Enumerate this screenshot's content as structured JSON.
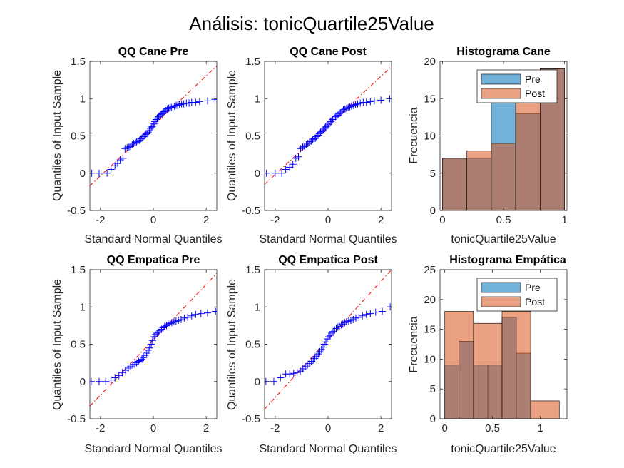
{
  "figure": {
    "title": "Análisis: tonicQuartile25Value",
    "colors": {
      "pre": "#0072BD",
      "post": "#D95319",
      "qq_marker": "#0000FF",
      "ref_line": "#FF0000"
    }
  },
  "chart_data": [
    {
      "id": "qq-cane-pre",
      "type": "scatter",
      "title": "QQ Cane Pre",
      "xlabel": "Standard Normal Quantiles",
      "ylabel": "Quantiles of Input Sample",
      "xlim": [
        -2.4,
        2.4
      ],
      "ylim": [
        -0.5,
        1.5
      ],
      "xticks": [
        -2,
        0,
        2
      ],
      "yticks": [
        -0.5,
        0,
        0.5,
        1,
        1.5
      ],
      "xtick_labels": [
        "-2",
        "0",
        "2"
      ],
      "ytick_labels": [
        "-0.5",
        "0",
        "0.5",
        "1",
        "1.5"
      ],
      "reference_line": {
        "x": [
          -2.4,
          2.4
        ],
        "y": [
          -0.17,
          1.44
        ]
      },
      "points": [
        [
          -2.33,
          0.0
        ],
        [
          -2.05,
          0.0
        ],
        [
          -1.75,
          0.0
        ],
        [
          -1.6,
          0.05
        ],
        [
          -1.45,
          0.1
        ],
        [
          -1.35,
          0.13
        ],
        [
          -1.25,
          0.18
        ],
        [
          -1.15,
          0.2
        ],
        [
          -1.07,
          0.33
        ],
        [
          -0.99,
          0.34
        ],
        [
          -0.92,
          0.35
        ],
        [
          -0.86,
          0.36
        ],
        [
          -0.8,
          0.38
        ],
        [
          -0.74,
          0.4
        ],
        [
          -0.68,
          0.41
        ],
        [
          -0.63,
          0.42
        ],
        [
          -0.58,
          0.43
        ],
        [
          -0.53,
          0.44
        ],
        [
          -0.48,
          0.46
        ],
        [
          -0.43,
          0.47
        ],
        [
          -0.38,
          0.49
        ],
        [
          -0.33,
          0.5
        ],
        [
          -0.29,
          0.52
        ],
        [
          -0.24,
          0.53
        ],
        [
          -0.2,
          0.55
        ],
        [
          -0.15,
          0.57
        ],
        [
          -0.11,
          0.6
        ],
        [
          -0.06,
          0.62
        ],
        [
          -0.02,
          0.63
        ],
        [
          0.02,
          0.66
        ],
        [
          0.06,
          0.69
        ],
        [
          0.11,
          0.72
        ],
        [
          0.15,
          0.74
        ],
        [
          0.2,
          0.76
        ],
        [
          0.24,
          0.77
        ],
        [
          0.29,
          0.79
        ],
        [
          0.33,
          0.8
        ],
        [
          0.38,
          0.82
        ],
        [
          0.43,
          0.83
        ],
        [
          0.48,
          0.84
        ],
        [
          0.53,
          0.86
        ],
        [
          0.58,
          0.87
        ],
        [
          0.63,
          0.88
        ],
        [
          0.68,
          0.88
        ],
        [
          0.74,
          0.89
        ],
        [
          0.8,
          0.9
        ],
        [
          0.86,
          0.91
        ],
        [
          0.92,
          0.91
        ],
        [
          0.99,
          0.92
        ],
        [
          1.07,
          0.93
        ],
        [
          1.15,
          0.93
        ],
        [
          1.25,
          0.94
        ],
        [
          1.35,
          0.94
        ],
        [
          1.45,
          0.95
        ],
        [
          1.6,
          0.95
        ],
        [
          1.75,
          0.96
        ],
        [
          2.05,
          0.97
        ],
        [
          2.33,
          0.99
        ]
      ]
    },
    {
      "id": "qq-cane-post",
      "type": "scatter",
      "title": "QQ Cane Post",
      "xlabel": "Standard Normal Quantiles",
      "ylabel": "Quantiles of Input Sample",
      "xlim": [
        -2.4,
        2.4
      ],
      "ylim": [
        -0.5,
        1.5
      ],
      "xticks": [
        -2,
        0,
        2
      ],
      "yticks": [
        -0.5,
        0,
        0.5,
        1,
        1.5
      ],
      "xtick_labels": [
        "-2",
        "0",
        "2"
      ],
      "ytick_labels": [
        "-0.5",
        "0",
        "0.5",
        "1",
        "1.5"
      ],
      "reference_line": {
        "x": [
          -2.4,
          2.4
        ],
        "y": [
          -0.15,
          1.43
        ]
      },
      "points": [
        [
          -2.33,
          0.0
        ],
        [
          -2.0,
          0.0
        ],
        [
          -1.75,
          0.0
        ],
        [
          -1.6,
          0.05
        ],
        [
          -1.45,
          0.08
        ],
        [
          -1.33,
          0.12
        ],
        [
          -1.22,
          0.2
        ],
        [
          -1.12,
          0.22
        ],
        [
          -1.04,
          0.33
        ],
        [
          -0.96,
          0.35
        ],
        [
          -0.89,
          0.36
        ],
        [
          -0.82,
          0.38
        ],
        [
          -0.76,
          0.4
        ],
        [
          -0.7,
          0.42
        ],
        [
          -0.64,
          0.43
        ],
        [
          -0.58,
          0.45
        ],
        [
          -0.53,
          0.46
        ],
        [
          -0.48,
          0.47
        ],
        [
          -0.43,
          0.49
        ],
        [
          -0.38,
          0.51
        ],
        [
          -0.33,
          0.53
        ],
        [
          -0.28,
          0.55
        ],
        [
          -0.23,
          0.56
        ],
        [
          -0.18,
          0.58
        ],
        [
          -0.13,
          0.6
        ],
        [
          -0.09,
          0.62
        ],
        [
          -0.04,
          0.63
        ],
        [
          0.0,
          0.65
        ],
        [
          0.04,
          0.67
        ],
        [
          0.09,
          0.69
        ],
        [
          0.13,
          0.7
        ],
        [
          0.18,
          0.72
        ],
        [
          0.23,
          0.74
        ],
        [
          0.28,
          0.76
        ],
        [
          0.33,
          0.77
        ],
        [
          0.38,
          0.78
        ],
        [
          0.43,
          0.8
        ],
        [
          0.48,
          0.81
        ],
        [
          0.53,
          0.83
        ],
        [
          0.58,
          0.85
        ],
        [
          0.64,
          0.86
        ],
        [
          0.7,
          0.87
        ],
        [
          0.76,
          0.88
        ],
        [
          0.82,
          0.89
        ],
        [
          0.89,
          0.9
        ],
        [
          0.96,
          0.91
        ],
        [
          1.04,
          0.92
        ],
        [
          1.12,
          0.93
        ],
        [
          1.22,
          0.94
        ],
        [
          1.33,
          0.95
        ],
        [
          1.45,
          0.95
        ],
        [
          1.6,
          0.96
        ],
        [
          1.75,
          0.97
        ],
        [
          2.0,
          0.98
        ],
        [
          2.33,
          1.0
        ]
      ]
    },
    {
      "id": "hist-cane",
      "type": "bar",
      "title": "Histograma Cane",
      "xlabel": "tonicQuartile25Value",
      "ylabel": "Frecuencia",
      "xlim": [
        -0.02,
        1.02
      ],
      "ylim": [
        0,
        20
      ],
      "xticks": [
        0,
        0.5,
        1
      ],
      "yticks": [
        0,
        5,
        10,
        15,
        20
      ],
      "xtick_labels": [
        "0",
        "0.5",
        "1"
      ],
      "ytick_labels": [
        "0",
        "5",
        "10",
        "15",
        "20"
      ],
      "legend": "top-right",
      "series": [
        {
          "name": "Pre",
          "edges": [
            0,
            0.2,
            0.4,
            0.6,
            0.8,
            1.0
          ],
          "values": [
            7,
            7,
            15,
            13,
            19
          ]
        },
        {
          "name": "Post",
          "edges": [
            0,
            0.2,
            0.4,
            0.6,
            0.8,
            1.0
          ],
          "values": [
            7,
            8,
            9,
            16,
            19
          ]
        }
      ]
    },
    {
      "id": "qq-empatica-pre",
      "type": "scatter",
      "title": "QQ Empatica Pre",
      "xlabel": "Standard Normal Quantiles",
      "ylabel": "Quantiles of Input Sample",
      "xlim": [
        -2.4,
        2.4
      ],
      "ylim": [
        -0.5,
        1.5
      ],
      "xticks": [
        -2,
        0,
        2
      ],
      "yticks": [
        -0.5,
        0,
        0.5,
        1,
        1.5
      ],
      "xtick_labels": [
        "-2",
        "0",
        "2"
      ],
      "ytick_labels": [
        "-0.5",
        "0",
        "0.5",
        "1",
        "1.5"
      ],
      "reference_line": {
        "x": [
          -2.4,
          2.4
        ],
        "y": [
          -0.33,
          1.45
        ]
      },
      "points": [
        [
          -2.35,
          0.0
        ],
        [
          -2.05,
          0.0
        ],
        [
          -1.8,
          0.0
        ],
        [
          -1.6,
          0.02
        ],
        [
          -1.45,
          0.05
        ],
        [
          -1.3,
          0.08
        ],
        [
          -1.17,
          0.12
        ],
        [
          -1.05,
          0.15
        ],
        [
          -0.95,
          0.18
        ],
        [
          -0.86,
          0.2
        ],
        [
          -0.78,
          0.22
        ],
        [
          -0.7,
          0.23
        ],
        [
          -0.63,
          0.25
        ],
        [
          -0.56,
          0.27
        ],
        [
          -0.5,
          0.28
        ],
        [
          -0.43,
          0.3
        ],
        [
          -0.37,
          0.32
        ],
        [
          -0.31,
          0.35
        ],
        [
          -0.25,
          0.38
        ],
        [
          -0.19,
          0.42
        ],
        [
          -0.14,
          0.45
        ],
        [
          -0.08,
          0.5
        ],
        [
          -0.03,
          0.55
        ],
        [
          0.03,
          0.6
        ],
        [
          0.08,
          0.63
        ],
        [
          0.14,
          0.65
        ],
        [
          0.19,
          0.66
        ],
        [
          0.25,
          0.68
        ],
        [
          0.31,
          0.7
        ],
        [
          0.37,
          0.72
        ],
        [
          0.43,
          0.74
        ],
        [
          0.5,
          0.75
        ],
        [
          0.56,
          0.77
        ],
        [
          0.63,
          0.78
        ],
        [
          0.7,
          0.79
        ],
        [
          0.78,
          0.8
        ],
        [
          0.86,
          0.81
        ],
        [
          0.95,
          0.82
        ],
        [
          1.05,
          0.83
        ],
        [
          1.17,
          0.85
        ],
        [
          1.3,
          0.86
        ],
        [
          1.45,
          0.88
        ],
        [
          1.6,
          0.9
        ],
        [
          1.8,
          0.91
        ],
        [
          2.05,
          0.92
        ],
        [
          2.35,
          0.94
        ]
      ]
    },
    {
      "id": "qq-empatica-post",
      "type": "scatter",
      "title": "QQ Empatica Post",
      "xlabel": "Standard Normal Quantiles",
      "ylabel": "Quantiles of Input Sample",
      "xlim": [
        -2.4,
        2.4
      ],
      "ylim": [
        -0.5,
        1.5
      ],
      "xticks": [
        -2,
        0,
        2
      ],
      "yticks": [
        -0.5,
        0,
        0.5,
        1,
        1.5
      ],
      "xtick_labels": [
        "-2",
        "0",
        "2"
      ],
      "ytick_labels": [
        "-0.5",
        "0",
        "0.5",
        "1",
        "1.5"
      ],
      "reference_line": {
        "x": [
          -2.4,
          2.4
        ],
        "y": [
          -0.37,
          1.5
        ]
      },
      "points": [
        [
          -2.35,
          0.0
        ],
        [
          -2.05,
          0.0
        ],
        [
          -1.8,
          0.05
        ],
        [
          -1.6,
          0.1
        ],
        [
          -1.45,
          0.1
        ],
        [
          -1.3,
          0.11
        ],
        [
          -1.17,
          0.12
        ],
        [
          -1.05,
          0.14
        ],
        [
          -0.95,
          0.17
        ],
        [
          -0.86,
          0.2
        ],
        [
          -0.78,
          0.22
        ],
        [
          -0.7,
          0.24
        ],
        [
          -0.63,
          0.27
        ],
        [
          -0.56,
          0.29
        ],
        [
          -0.5,
          0.31
        ],
        [
          -0.43,
          0.34
        ],
        [
          -0.37,
          0.37
        ],
        [
          -0.31,
          0.4
        ],
        [
          -0.25,
          0.43
        ],
        [
          -0.19,
          0.46
        ],
        [
          -0.14,
          0.5
        ],
        [
          -0.08,
          0.53
        ],
        [
          -0.03,
          0.57
        ],
        [
          0.03,
          0.6
        ],
        [
          0.08,
          0.62
        ],
        [
          0.14,
          0.65
        ],
        [
          0.19,
          0.67
        ],
        [
          0.25,
          0.69
        ],
        [
          0.31,
          0.71
        ],
        [
          0.37,
          0.73
        ],
        [
          0.43,
          0.74
        ],
        [
          0.5,
          0.76
        ],
        [
          0.56,
          0.77
        ],
        [
          0.63,
          0.79
        ],
        [
          0.7,
          0.8
        ],
        [
          0.78,
          0.81
        ],
        [
          0.86,
          0.82
        ],
        [
          0.95,
          0.83
        ],
        [
          1.05,
          0.85
        ],
        [
          1.17,
          0.86
        ],
        [
          1.3,
          0.88
        ],
        [
          1.45,
          0.9
        ],
        [
          1.6,
          0.91
        ],
        [
          1.8,
          0.93
        ],
        [
          2.05,
          0.94
        ],
        [
          2.35,
          1.0
        ]
      ]
    },
    {
      "id": "hist-empatica",
      "type": "bar",
      "title": "Histograma Empática",
      "xlabel": "tonicQuartile25Value",
      "ylabel": "Frecuencia",
      "xlim": [
        -0.05,
        1.28
      ],
      "ylim": [
        0,
        25
      ],
      "xticks": [
        0,
        0.5,
        1
      ],
      "yticks": [
        0,
        5,
        10,
        15,
        20,
        25
      ],
      "xtick_labels": [
        "0",
        "0.5",
        "1"
      ],
      "ytick_labels": [
        "0",
        "5",
        "10",
        "15",
        "20",
        "25"
      ],
      "legend": "top-right",
      "series": [
        {
          "name": "Pre",
          "edges": [
            0,
            0.15,
            0.3,
            0.45,
            0.6,
            0.75,
            0.9,
            1.05
          ],
          "values": [
            9,
            13,
            9,
            9,
            17,
            11,
            0
          ]
        },
        {
          "name": "Post",
          "edges": [
            0,
            0.3,
            0.6,
            0.9,
            1.2
          ],
          "values": [
            18,
            16,
            18,
            3
          ]
        }
      ]
    }
  ]
}
